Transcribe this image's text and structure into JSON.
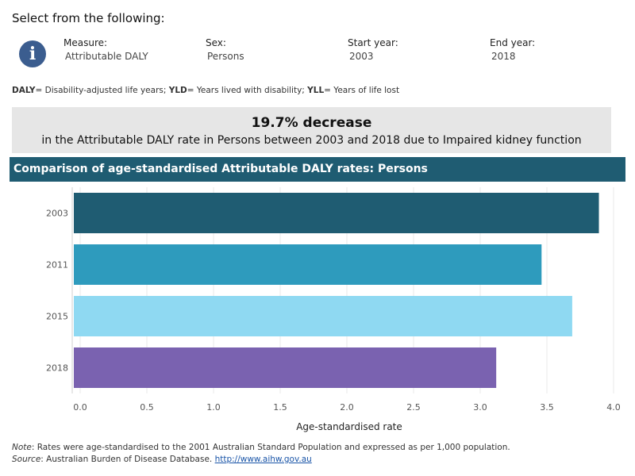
{
  "page": {
    "select_heading": "Select from the following:",
    "info_icon_glyph": "i"
  },
  "filters": [
    {
      "label": "Measure:",
      "value": "Attributable DALY"
    },
    {
      "label": "Sex:",
      "value": "Persons"
    },
    {
      "label": "Start year:",
      "value": "2003"
    },
    {
      "label": "End year:",
      "value": "2018"
    }
  ],
  "glossary": [
    {
      "term": "DALY",
      "definition": "= Disability-adjusted life years; "
    },
    {
      "term": "YLD",
      "definition": "= Years lived with disability; "
    },
    {
      "term": "YLL",
      "definition": "= Years of life lost"
    }
  ],
  "summary": {
    "headline": "19.7% decrease",
    "detail": "in the Attributable DALY rate in Persons between 2003 and 2018 due to Impaired kidney function"
  },
  "chart_header": "Comparison of age-standardised Attributable DALY rates: Persons",
  "chart_data": {
    "type": "bar",
    "orientation": "horizontal",
    "categories": [
      "2003",
      "2011",
      "2015",
      "2018"
    ],
    "values": [
      3.89,
      3.46,
      3.69,
      3.12
    ],
    "colors": [
      "#1f5c72",
      "#2e9bbd",
      "#8fd9f2",
      "#7a62b0"
    ],
    "xlabel": "Age-standardised rate",
    "xlim": [
      0,
      4.0
    ],
    "xticks": [
      "0.0",
      "0.5",
      "1.0",
      "1.5",
      "2.0",
      "2.5",
      "3.0",
      "3.5",
      "4.0"
    ],
    "grid": true
  },
  "footnote": {
    "note_label": "Note",
    "note_text": ": Rates were age-standardised to the 2001 Australian Standard Population and expressed as per 1,000 population.",
    "source_label": "Source",
    "source_text": ": Australian Burden of Disease Database. ",
    "source_link": "http://www.aihw.gov.au"
  }
}
